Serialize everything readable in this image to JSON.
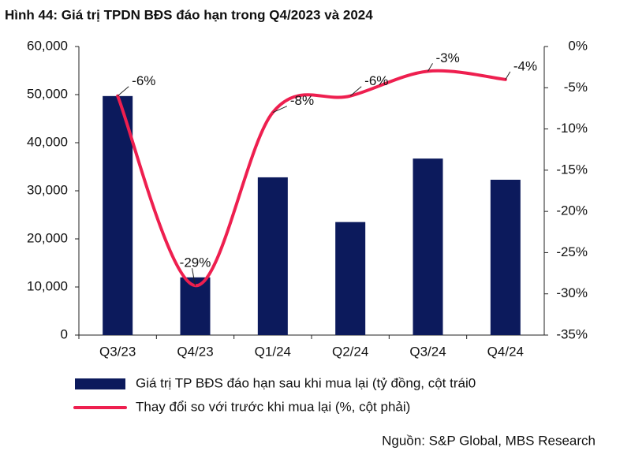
{
  "chart_data": {
    "type": "combo",
    "title": "Hình 44: Giá trị TPDN BĐS đáo hạn trong Q4/2023 và 2024",
    "categories": [
      "Q3/23",
      "Q4/23",
      "Q1/24",
      "Q2/24",
      "Q3/24",
      "Q4/24"
    ],
    "series": [
      {
        "name": "Giá trị TP BĐS đáo hạn sau khi mua lại (tỷ đồng, cột trái0",
        "type": "bar",
        "color": "#0c1a5c",
        "values": [
          49700,
          12000,
          32800,
          23500,
          36700,
          32300
        ]
      },
      {
        "name": "Thay đổi so với trước khi mua lại (%, cột phải)",
        "type": "line",
        "axis": "y2",
        "color": "#ee1f4f",
        "values": [
          -6,
          -29,
          -8,
          -6,
          -3,
          -4
        ],
        "value_labels": [
          "-6%",
          "-29%",
          "-8%",
          "-6%",
          "-3%",
          "-4%"
        ]
      }
    ],
    "ylim": [
      0,
      60000
    ],
    "yticks": [
      0,
      {
        "value": 10000,
        "label": "10,000"
      },
      {
        "value": 20000,
        "label": "20,000"
      },
      {
        "value": 30000,
        "label": "30,000"
      },
      {
        "value": 40000,
        "label": "40,000"
      },
      {
        "value": 50000,
        "label": "50,000"
      },
      {
        "value": 60000,
        "label": "60,000"
      }
    ],
    "y2lim": [
      -35,
      0
    ],
    "y2ticks": [
      {
        "value": -35,
        "label": "-35%"
      },
      {
        "value": -30,
        "label": "-30%"
      },
      {
        "value": -25,
        "label": "-25%"
      },
      {
        "value": -20,
        "label": "-20%"
      },
      {
        "value": -15,
        "label": "-15%"
      },
      {
        "value": -10,
        "label": "-10%"
      },
      {
        "value": -5,
        "label": "-5%"
      },
      {
        "value": 0,
        "label": "0%"
      }
    ],
    "grid": false,
    "source": "Nguồn: S&P Global, MBS Research"
  }
}
